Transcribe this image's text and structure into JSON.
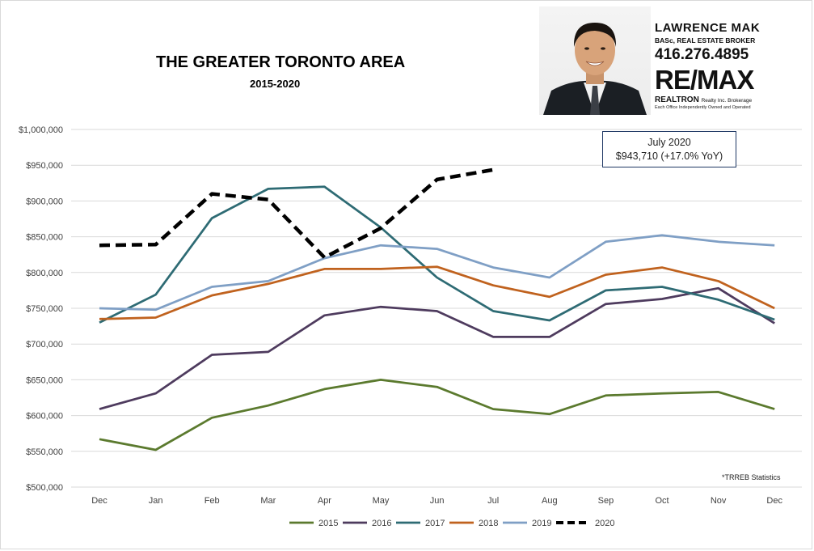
{
  "chart_data": {
    "type": "line",
    "title": "THE GREATER TORONTO AREA",
    "subtitle": "2015-2020",
    "categories": [
      "Dec",
      "Jan",
      "Feb",
      "Mar",
      "Apr",
      "May",
      "Jun",
      "Jul",
      "Aug",
      "Sep",
      "Oct",
      "Nov",
      "Dec"
    ],
    "ylim": [
      500000,
      1000000
    ],
    "yticks": [
      500000,
      550000,
      600000,
      650000,
      700000,
      750000,
      800000,
      850000,
      900000,
      950000,
      1000000
    ],
    "ytick_labels": [
      "$500,000",
      "$550,000",
      "$600,000",
      "$650,000",
      "$700,000",
      "$750,000",
      "$800,000",
      "$850,000",
      "$900,000",
      "$950,000",
      "$1,000,000"
    ],
    "grid": true,
    "legend": "bottom",
    "series": [
      {
        "name": "2015",
        "color": "#5b7a2e",
        "dash": false,
        "values": [
          567000,
          552000,
          597000,
          614000,
          637000,
          650000,
          640000,
          609000,
          602000,
          628000,
          631000,
          633000,
          609000
        ]
      },
      {
        "name": "2016",
        "color": "#4e3b5e",
        "dash": false,
        "values": [
          609000,
          631000,
          685000,
          689000,
          740000,
          752000,
          746000,
          710000,
          710000,
          756000,
          763000,
          778000,
          729000
        ]
      },
      {
        "name": "2017",
        "color": "#2e6b74",
        "dash": false,
        "values": [
          730000,
          769000,
          876000,
          917000,
          920000,
          863000,
          793000,
          746000,
          733000,
          775000,
          780000,
          762000,
          734000
        ]
      },
      {
        "name": "2018",
        "color": "#c0621e",
        "dash": false,
        "values": [
          735000,
          737000,
          768000,
          784000,
          805000,
          805000,
          808000,
          782000,
          766000,
          797000,
          807000,
          788000,
          750000
        ]
      },
      {
        "name": "2019",
        "color": "#7f9fc5",
        "dash": false,
        "values": [
          750000,
          748000,
          780000,
          788000,
          820000,
          838000,
          833000,
          807000,
          793000,
          843000,
          852000,
          843000,
          838000
        ]
      },
      {
        "name": "2020",
        "color": "#000000",
        "dash": true,
        "values": [
          838000,
          839000,
          910000,
          902000,
          821000,
          862000,
          930000,
          943710,
          null,
          null,
          null,
          null,
          null
        ]
      }
    ],
    "annotation": {
      "line1": "July 2020",
      "line2": "$943,710  (+17.0% YoY)"
    },
    "note": "*TRREB Statistics"
  },
  "agent": {
    "name": "LAWRENCE MAK",
    "title": "BASc, REAL ESTATE BROKER",
    "phone": "416.276.4895",
    "brand": "RE/MAX",
    "brokerage": "REALTRON",
    "brokerage_suffix": "Realty Inc. Brokerage",
    "office_note": "Each Office Independently Owned and Operated"
  }
}
